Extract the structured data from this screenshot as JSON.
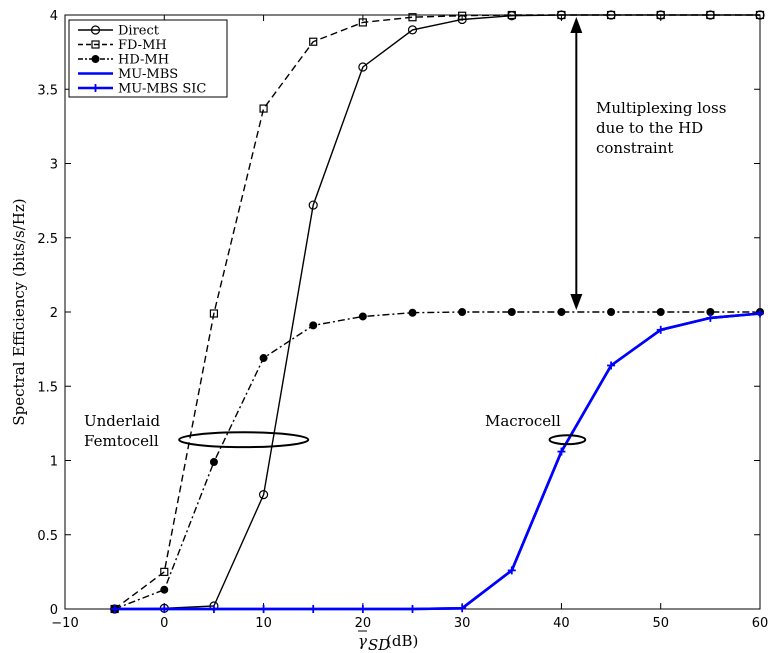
{
  "chart_data": {
    "type": "line",
    "xlabel_main": "γ",
    "xlabel_sub": "SD",
    "xlabel_unit": " (dB)",
    "ylabel": "Spectral Efficiency (bits/s/Hz)",
    "xlim": [
      -10,
      60
    ],
    "ylim": [
      0,
      4
    ],
    "xticks": [
      -10,
      0,
      10,
      20,
      30,
      40,
      50,
      60
    ],
    "yticks": [
      0,
      0.5,
      1,
      1.5,
      2,
      2.5,
      3,
      3.5,
      4
    ],
    "grid": false,
    "legend_position": "top-left",
    "series": [
      {
        "name": "Direct",
        "color": "#000000",
        "dash": "solid",
        "marker": "circle",
        "x": [
          -5,
          0,
          5,
          10,
          15,
          20,
          25,
          30,
          35,
          40,
          45,
          50,
          55,
          60
        ],
        "y": [
          0.0,
          0.005,
          0.02,
          0.77,
          2.72,
          3.65,
          3.9,
          3.97,
          3.995,
          4.0,
          4.0,
          4.0,
          4.0,
          4.0
        ]
      },
      {
        "name": "FD-MH",
        "color": "#000000",
        "dash": "dashed",
        "marker": "square",
        "x": [
          -5,
          0,
          5,
          10,
          15,
          20,
          25,
          30,
          35,
          40,
          45,
          50,
          55,
          60
        ],
        "y": [
          0.0,
          0.25,
          1.99,
          3.37,
          3.82,
          3.95,
          3.985,
          3.995,
          4.0,
          4.0,
          4.0,
          4.0,
          4.0,
          4.0
        ]
      },
      {
        "name": "HD-MH",
        "color": "#000000",
        "dash": "dashdot",
        "marker": "dot",
        "x": [
          -5,
          0,
          5,
          10,
          15,
          20,
          25,
          30,
          35,
          40,
          45,
          50,
          55,
          60
        ],
        "y": [
          0.0,
          0.13,
          0.99,
          1.69,
          1.91,
          1.97,
          1.995,
          2.0,
          2.0,
          2.0,
          2.0,
          2.0,
          2.0,
          2.0
        ]
      },
      {
        "name": "MU-MBS",
        "color": "#0000ff",
        "dash": "solid",
        "marker": "none",
        "x": [
          -5,
          0,
          5,
          10,
          15,
          20,
          25,
          30,
          35,
          40,
          45,
          50,
          55,
          60
        ],
        "y": [
          0.0,
          0.0,
          0.0,
          0.0,
          0.0,
          0.0,
          0.0,
          0.005,
          0.26,
          1.06,
          1.64,
          1.88,
          1.96,
          1.99
        ]
      },
      {
        "name": "MU-MBS SIC",
        "color": "#0000ff",
        "dash": "solid",
        "marker": "plus",
        "x": [
          -5,
          0,
          5,
          10,
          15,
          20,
          25,
          30,
          35,
          40,
          45,
          50,
          55,
          60
        ],
        "y": [
          0.0,
          0.0,
          0.0,
          0.0,
          0.0,
          0.0,
          0.0,
          0.005,
          0.26,
          1.06,
          1.64,
          1.88,
          1.96,
          1.99
        ]
      }
    ],
    "annotations": {
      "multiplexing_lines": [
        "Multiplexing loss",
        "due to the HD",
        "constraint"
      ],
      "arrow_x": 41.5,
      "arrow_y_top": 4.0,
      "arrow_y_bottom": 2.0,
      "underlaid_lines": [
        "Underlaid",
        "Femtocell"
      ],
      "underlaid_ellipse": {
        "cx": 8,
        "cy": 1.14,
        "rx": 6.5,
        "ry": 0.05
      },
      "macrocell_label": "Macrocell",
      "macrocell_ellipse": {
        "cx": 40.6,
        "cy": 1.14,
        "rx": 1.8,
        "ry": 0.03
      }
    }
  }
}
